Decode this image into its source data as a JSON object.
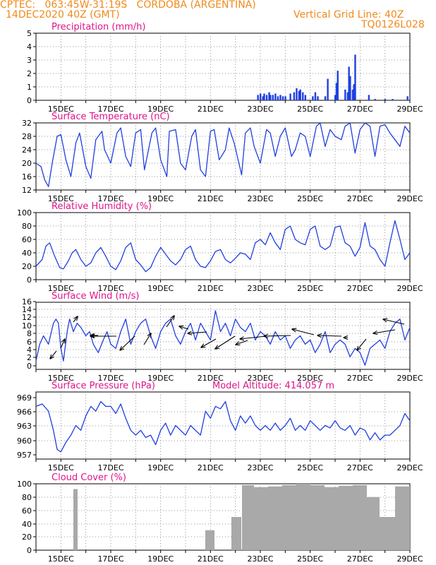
{
  "header": {
    "line1_left": "CPTEC:   063:45W-31:19S   CORDOBA (ARGENTINA)",
    "line2_left": "14DEC2020 40Z (GMT)",
    "line2_right": "Vertical Grid Line: 40Z",
    "line3_right": "TQ0126L028"
  },
  "colors": {
    "header": "#f08a1c",
    "titles": "#e0138c",
    "line": "#1f3fe0",
    "bar_precip": "#1f3fe0",
    "bar_cloud": "#a9a9a9",
    "grid": "#7a7a7a"
  },
  "x_axis": {
    "ticks": [
      "15DEC",
      "17DEC",
      "19DEC",
      "21DEC",
      "23DEC",
      "25DEC",
      "27DEC",
      "29DEC"
    ],
    "tick_days": [
      1,
      3,
      5,
      7,
      9,
      11,
      13,
      15
    ]
  },
  "chart_data": [
    {
      "type": "bar",
      "title": "Precipitation (mm/h)",
      "ylim": [
        0,
        5
      ],
      "yticks": [
        "0",
        "1",
        "2",
        "3",
        "4",
        "5"
      ],
      "x": [
        8.9,
        9.0,
        9.1,
        9.15,
        9.25,
        9.35,
        9.4,
        9.5,
        9.6,
        9.7,
        9.8,
        9.9,
        10.0,
        10.2,
        10.35,
        10.45,
        10.55,
        10.6,
        10.7,
        10.8,
        11.1,
        11.2,
        11.3,
        11.6,
        11.7,
        12.0,
        12.05,
        12.1,
        12.4,
        12.5,
        12.55,
        12.6,
        12.7,
        12.75,
        12.8,
        13.35,
        13.6,
        14.0,
        14.3,
        14.9
      ],
      "values": [
        0.4,
        0.5,
        0.3,
        0.5,
        0.4,
        0.6,
        0.4,
        0.4,
        0.5,
        0.3,
        0.4,
        0.3,
        0.3,
        0.5,
        0.6,
        0.9,
        0.7,
        0.8,
        0.6,
        0.4,
        0.3,
        0.6,
        0.3,
        0.3,
        1.6,
        0.4,
        1.3,
        2.2,
        0.8,
        0.6,
        2.5,
        1.8,
        0.8,
        1.2,
        3.4,
        0.4,
        0.1,
        0.1,
        0.1,
        0.3
      ]
    },
    {
      "type": "line",
      "title": "Surface Temperature (nC)",
      "ylim": [
        12,
        32
      ],
      "yticks": [
        "12",
        "16",
        "20",
        "24",
        "28",
        "32"
      ],
      "x": [
        0,
        0.2,
        0.35,
        0.5,
        0.65,
        0.85,
        1.0,
        1.2,
        1.4,
        1.6,
        1.75,
        2.0,
        2.2,
        2.4,
        2.65,
        2.75,
        3.0,
        3.25,
        3.4,
        3.6,
        3.8,
        4.0,
        4.2,
        4.35,
        4.65,
        4.8,
        5.0,
        5.25,
        5.35,
        5.6,
        5.8,
        6.0,
        6.25,
        6.4,
        6.6,
        6.8,
        7.0,
        7.15,
        7.35,
        7.6,
        7.75,
        7.95,
        8.25,
        8.4,
        8.6,
        8.75,
        9.0,
        9.25,
        9.4,
        9.6,
        9.8,
        10.0,
        10.25,
        10.4,
        10.6,
        10.8,
        11.0,
        11.25,
        11.4,
        11.6,
        11.8,
        12.0,
        12.25,
        12.4,
        12.6,
        12.8,
        13.0,
        13.2,
        13.4,
        13.6,
        13.8,
        14.0,
        14.2,
        14.4,
        14.6,
        14.8,
        15.0
      ],
      "values": [
        20,
        19,
        15,
        13,
        20,
        28,
        28.5,
        21,
        16,
        26,
        29,
        19,
        15.5,
        27,
        29.5,
        24,
        20,
        29,
        30.5,
        22,
        19,
        29,
        30,
        18,
        29,
        30.5,
        21,
        16,
        29.5,
        30,
        20,
        18,
        28,
        30,
        18,
        16,
        29.5,
        30,
        21,
        24,
        30.5,
        26,
        16.5,
        29,
        30.5,
        25,
        20,
        30,
        29,
        22,
        28,
        30.5,
        22,
        24,
        29,
        28,
        22,
        31,
        32,
        25,
        30,
        28,
        27,
        31,
        32,
        23,
        30,
        32,
        31,
        22,
        31,
        31.5,
        29,
        27,
        25,
        31,
        29
      ]
    },
    {
      "type": "line",
      "title": "Relative Humidity (%)",
      "ylim": [
        0,
        100
      ],
      "yticks": [
        "0",
        "20",
        "40",
        "60",
        "80",
        "100"
      ],
      "x": [
        0,
        0.25,
        0.4,
        0.55,
        0.75,
        0.95,
        1.1,
        1.3,
        1.45,
        1.6,
        1.8,
        2.0,
        2.2,
        2.4,
        2.6,
        2.8,
        3.0,
        3.2,
        3.4,
        3.6,
        3.8,
        4.0,
        4.2,
        4.4,
        4.6,
        4.8,
        5.0,
        5.2,
        5.4,
        5.6,
        5.8,
        6.0,
        6.2,
        6.4,
        6.6,
        6.8,
        7.0,
        7.2,
        7.4,
        7.6,
        7.8,
        8.0,
        8.2,
        8.4,
        8.6,
        8.8,
        9.0,
        9.2,
        9.4,
        9.6,
        9.8,
        10.0,
        10.2,
        10.4,
        10.6,
        10.8,
        11.0,
        11.2,
        11.4,
        11.6,
        11.8,
        12.0,
        12.2,
        12.4,
        12.6,
        12.8,
        13.0,
        13.2,
        13.4,
        13.6,
        13.8,
        14.0,
        14.2,
        14.4,
        14.6,
        14.8,
        15.0
      ],
      "values": [
        20,
        30,
        50,
        55,
        35,
        18,
        16,
        28,
        40,
        45,
        30,
        20,
        25,
        40,
        48,
        35,
        20,
        15,
        28,
        48,
        55,
        30,
        22,
        12,
        18,
        35,
        48,
        38,
        28,
        22,
        30,
        45,
        50,
        30,
        20,
        18,
        28,
        42,
        45,
        30,
        25,
        32,
        40,
        38,
        30,
        55,
        60,
        52,
        70,
        55,
        45,
        75,
        80,
        60,
        55,
        52,
        75,
        80,
        50,
        45,
        50,
        78,
        80,
        55,
        50,
        35,
        48,
        85,
        50,
        45,
        30,
        20,
        55,
        88,
        60,
        30,
        40
      ]
    },
    {
      "type": "line",
      "title": "Surface Wind (m/s)",
      "ylim": [
        0,
        16
      ],
      "yticks": [
        "0",
        "2",
        "4",
        "6",
        "8",
        "10",
        "12",
        "14",
        "16"
      ],
      "x": [
        0,
        0.15,
        0.3,
        0.5,
        0.7,
        0.8,
        0.9,
        1.0,
        1.1,
        1.25,
        1.35,
        1.5,
        1.65,
        1.8,
        2.0,
        2.15,
        2.3,
        2.5,
        2.7,
        2.85,
        3.0,
        3.2,
        3.4,
        3.6,
        3.8,
        4.0,
        4.2,
        4.4,
        4.6,
        4.8,
        5.0,
        5.2,
        5.4,
        5.6,
        5.8,
        6.0,
        6.2,
        6.4,
        6.6,
        6.8,
        7.0,
        7.2,
        7.4,
        7.6,
        7.8,
        8.0,
        8.2,
        8.4,
        8.6,
        8.8,
        9.0,
        9.2,
        9.4,
        9.6,
        9.8,
        10.0,
        10.2,
        10.4,
        10.6,
        10.8,
        11.0,
        11.2,
        11.4,
        11.6,
        11.8,
        12.0,
        12.2,
        12.4,
        12.6,
        12.8,
        13.0,
        13.2,
        13.4,
        13.6,
        13.8,
        14.0,
        14.2,
        14.4,
        14.6,
        14.8,
        15.0
      ],
      "values": [
        2,
        6,
        8,
        6,
        11,
        12,
        11,
        5,
        2,
        9,
        12,
        9,
        11,
        10,
        8,
        9,
        6,
        4,
        7,
        9,
        6,
        5,
        9,
        12,
        6,
        9,
        11,
        12,
        8,
        5,
        9,
        11,
        12,
        8,
        6,
        9,
        11,
        7,
        11,
        9,
        7,
        14,
        9,
        11,
        8,
        12,
        10,
        9,
        11,
        7,
        9,
        8,
        6,
        9,
        7,
        8,
        5,
        7,
        8,
        6,
        7,
        4,
        6,
        9,
        4,
        6,
        7,
        6,
        3,
        5,
        4,
        1,
        5,
        6,
        7,
        5,
        9,
        11,
        12,
        7,
        10
      ]
    },
    {
      "type": "line",
      "title": "Surface Pressure (hPa)",
      "annotation": "Model Altitude: 414.057 m",
      "ylim": [
        956,
        970
      ],
      "yticks": [
        "957",
        "960",
        "963",
        "966",
        "969"
      ],
      "x": [
        0,
        0.25,
        0.5,
        0.7,
        0.85,
        1.0,
        1.2,
        1.4,
        1.6,
        1.8,
        2.0,
        2.2,
        2.4,
        2.6,
        2.8,
        3.0,
        3.2,
        3.4,
        3.6,
        3.8,
        4.0,
        4.2,
        4.4,
        4.6,
        4.8,
        5.0,
        5.2,
        5.4,
        5.6,
        5.8,
        6.0,
        6.2,
        6.4,
        6.6,
        6.8,
        7.0,
        7.2,
        7.4,
        7.6,
        7.8,
        8.0,
        8.2,
        8.4,
        8.6,
        8.8,
        9.0,
        9.2,
        9.4,
        9.6,
        9.8,
        10.0,
        10.2,
        10.4,
        10.6,
        10.8,
        11.0,
        11.2,
        11.4,
        11.6,
        11.8,
        12.0,
        12.2,
        12.4,
        12.6,
        12.8,
        13.0,
        13.2,
        13.4,
        13.6,
        13.8,
        14.0,
        14.2,
        14.4,
        14.6,
        14.8,
        15.0
      ],
      "values": [
        967,
        967.5,
        966,
        962,
        958,
        957.5,
        959.5,
        961,
        963,
        962,
        965,
        967,
        966,
        968,
        967,
        967,
        965.5,
        967.5,
        964.5,
        962,
        961,
        962,
        960.5,
        961,
        959,
        962,
        963.5,
        961,
        963,
        962,
        961,
        963,
        962,
        961,
        966,
        964.5,
        967,
        966.5,
        968,
        964,
        962,
        965,
        963.5,
        965,
        963,
        962,
        963,
        962,
        963.5,
        962,
        963,
        964.5,
        962,
        963,
        962,
        964,
        963,
        962,
        963,
        962.5,
        964,
        962.5,
        962,
        963,
        961,
        962.5,
        962,
        960,
        961.5,
        960,
        961,
        961,
        962,
        963,
        965.5,
        964
      ]
    },
    {
      "type": "bar",
      "title": "Cloud Cover (%)",
      "ylim": [
        0,
        100
      ],
      "yticks": [
        "0",
        "20",
        "40",
        "60",
        "80",
        "100"
      ]
    }
  ]
}
